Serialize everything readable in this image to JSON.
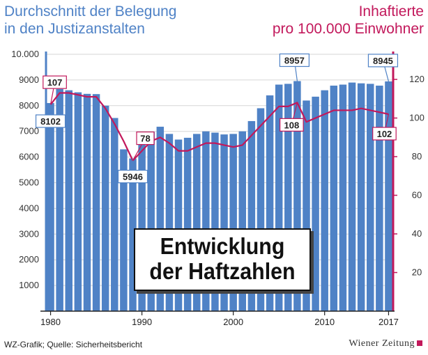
{
  "title_left": [
    "Durchschnitt der Belegung",
    "in den Justizanstalten"
  ],
  "title_right": [
    "Inhaftierte",
    "pro 100.000 Einwohner"
  ],
  "annotation": [
    "Entwicklung",
    "der Haftzahlen"
  ],
  "source": "WZ-Grafik; Quelle: Sicherheitsbericht",
  "logo": "Wiener Zeitung",
  "colors": {
    "bar": "#4f82c6",
    "line": "#c2185b",
    "grid": "#d6d6d6"
  },
  "chart_data": {
    "type": "bar",
    "x": [
      1980,
      1981,
      1982,
      1983,
      1984,
      1985,
      1986,
      1987,
      1988,
      1989,
      1990,
      1991,
      1992,
      1993,
      1994,
      1995,
      1996,
      1997,
      1998,
      1999,
      2000,
      2001,
      2002,
      2003,
      2004,
      2005,
      2006,
      2007,
      2008,
      2009,
      2010,
      2011,
      2012,
      2013,
      2014,
      2015,
      2016,
      2017
    ],
    "series": [
      {
        "type": "bar",
        "axis": "left",
        "values": [
          8102,
          8650,
          8600,
          8520,
          8460,
          8450,
          8000,
          7520,
          6300,
          5946,
          6500,
          6980,
          7180,
          6900,
          6680,
          6750,
          6900,
          7000,
          6950,
          6880,
          6900,
          7000,
          7400,
          7900,
          8400,
          8820,
          8850,
          8957,
          8200,
          8350,
          8600,
          8780,
          8820,
          8900,
          8870,
          8850,
          8780,
          8945
        ]
      },
      {
        "type": "line",
        "axis": "right",
        "values": [
          107,
          113,
          113,
          112,
          111,
          111,
          105,
          97,
          88,
          78,
          83,
          88,
          90,
          87,
          83,
          83,
          85,
          87,
          87,
          86,
          85,
          86,
          91,
          96,
          101,
          106,
          106,
          108,
          98,
          100,
          102,
          104,
          104,
          104,
          105,
          104,
          103,
          102
        ]
      }
    ],
    "left_ticks": [
      "1000",
      "2000",
      "3000",
      "4000",
      "5000",
      "6000",
      "7000",
      "8000",
      "9000",
      "10.000"
    ],
    "right_ticks": [
      "20",
      "40",
      "60",
      "80",
      "100",
      "120"
    ],
    "x_ticks": [
      "1980",
      "1990",
      "2000",
      "2010",
      "2017"
    ],
    "left_ylim": [
      0,
      10000
    ],
    "right_ylim": [
      0,
      133
    ],
    "labels": [
      {
        "series": 0,
        "x": 1980,
        "text": "8102"
      },
      {
        "series": 0,
        "x": 1989,
        "text": "5946"
      },
      {
        "series": 0,
        "x": 2007,
        "text": "8957"
      },
      {
        "series": 0,
        "x": 2017,
        "text": "8945"
      },
      {
        "series": 1,
        "x": 1980,
        "text": "107"
      },
      {
        "series": 1,
        "x": 1989,
        "text": "78"
      },
      {
        "series": 1,
        "x": 2007,
        "text": "108"
      },
      {
        "series": 1,
        "x": 2017,
        "text": "102"
      }
    ]
  }
}
